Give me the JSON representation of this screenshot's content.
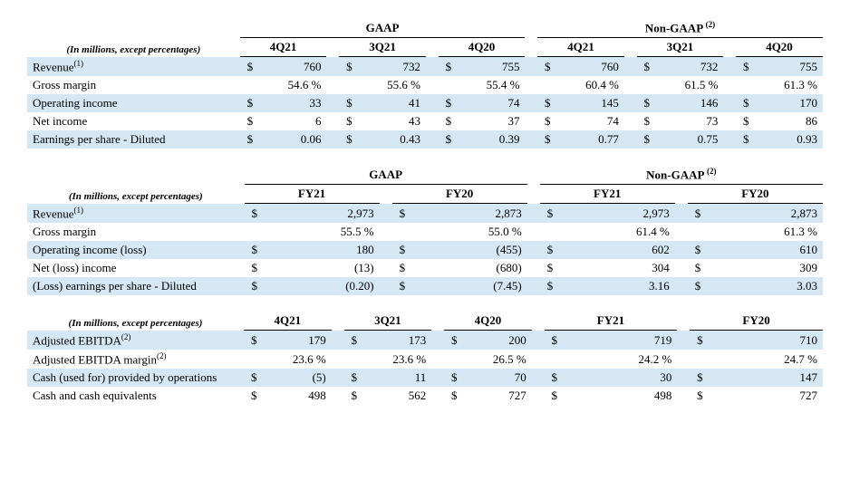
{
  "labels": {
    "subtitle": "(In millions, except percentages)",
    "gaap": "GAAP",
    "nongaap": "Non-GAAP",
    "sup1": "(1)",
    "sup2": "(2)"
  },
  "colors": {
    "highlight": "#d4e7f3",
    "text": "#000000",
    "background": "#ffffff"
  },
  "table1": {
    "type": "table",
    "cols": [
      "4Q21",
      "3Q21",
      "4Q20",
      "4Q21",
      "3Q21",
      "4Q20"
    ],
    "rows": [
      {
        "label": "Revenue",
        "sup": "(1)",
        "hl": true,
        "d": true,
        "v": [
          "760",
          "732",
          "755",
          "760",
          "732",
          "755"
        ]
      },
      {
        "label": "Gross margin",
        "hl": false,
        "d": false,
        "pct": true,
        "v": [
          "54.6 %",
          "55.6 %",
          "55.4 %",
          "60.4 %",
          "61.5 %",
          "61.3 %"
        ]
      },
      {
        "label": "Operating income",
        "hl": true,
        "d": true,
        "v": [
          "33",
          "41",
          "74",
          "145",
          "146",
          "170"
        ]
      },
      {
        "label": "Net income",
        "hl": false,
        "d": true,
        "v": [
          "6",
          "43",
          "37",
          "74",
          "73",
          "86"
        ]
      },
      {
        "label": "Earnings per share - Diluted",
        "hl": true,
        "d": true,
        "v": [
          "0.06",
          "0.43",
          "0.39",
          "0.77",
          "0.75",
          "0.93"
        ]
      }
    ]
  },
  "table2": {
    "type": "table",
    "cols": [
      "FY21",
      "FY20",
      "FY21",
      "FY20"
    ],
    "rows": [
      {
        "label": "Revenue",
        "sup": "(1)",
        "hl": true,
        "d": true,
        "v": [
          "2,973",
          "2,873",
          "2,973",
          "2,873"
        ]
      },
      {
        "label": "Gross margin",
        "hl": false,
        "d": false,
        "pct": true,
        "v": [
          "55.5 %",
          "55.0 %",
          "61.4 %",
          "61.3 %"
        ]
      },
      {
        "label": "Operating income (loss)",
        "hl": true,
        "d": true,
        "v": [
          "180",
          "(455)",
          "602",
          "610"
        ]
      },
      {
        "label": "Net (loss) income",
        "hl": false,
        "d": true,
        "v": [
          "(13)",
          "(680)",
          "304",
          "309"
        ]
      },
      {
        "label": "(Loss) earnings per share - Diluted",
        "hl": true,
        "d": true,
        "v": [
          "(0.20)",
          "(7.45)",
          "3.16",
          "3.03"
        ]
      }
    ]
  },
  "table3": {
    "type": "table",
    "cols": [
      "4Q21",
      "3Q21",
      "4Q20",
      "FY21",
      "FY20"
    ],
    "rows": [
      {
        "label": "Adjusted EBITDA",
        "sup": "(2)",
        "hl": true,
        "d": true,
        "v": [
          "179",
          "173",
          "200",
          "719",
          "710"
        ]
      },
      {
        "label": "Adjusted EBITDA margin",
        "sup": "(2)",
        "hl": false,
        "d": false,
        "pct": true,
        "v": [
          "23.6 %",
          "23.6 %",
          "26.5 %",
          "24.2 %",
          "24.7 %"
        ]
      },
      {
        "label": "Cash (used for) provided by operations",
        "hl": true,
        "d": true,
        "v": [
          "(5)",
          "11",
          "70",
          "30",
          "147"
        ]
      },
      {
        "label": "Cash and cash equivalents",
        "hl": false,
        "d": true,
        "v": [
          "498",
          "562",
          "727",
          "498",
          "727"
        ]
      }
    ]
  }
}
